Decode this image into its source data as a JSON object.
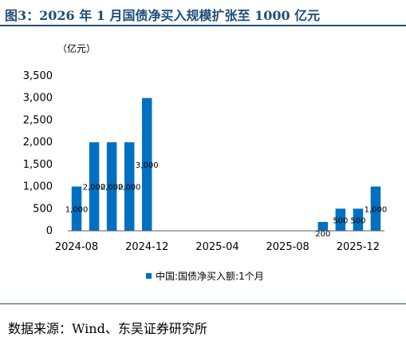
{
  "page": {
    "title": "图3：2026 年 1 月国债净买入规模扩张至 1000 亿元",
    "source": "数据来源：Wind、东吴证券研究所"
  },
  "chart_data": {
    "type": "bar",
    "unit_label": "（亿元）",
    "categories": [
      "2024-08",
      "2024-09",
      "2024-10",
      "2024-11",
      "2024-12",
      "2025-01",
      "2025-02",
      "2025-03",
      "2025-04",
      "2025-05",
      "2025-06",
      "2025-07",
      "2025-08",
      "2025-09",
      "2025-10",
      "2025-11",
      "2025-12",
      "2026-01"
    ],
    "x_tick_labels": [
      "2024-08",
      "2024-12",
      "2025-04",
      "2025-08",
      "2025-12"
    ],
    "ylim": [
      0,
      3500
    ],
    "y_ticks": [
      0,
      500,
      1000,
      1500,
      2000,
      2500,
      3000,
      3500
    ],
    "y_tick_labels": [
      "0",
      "500",
      "1,000",
      "1,500",
      "2,000",
      "2,500",
      "3,000",
      "3,500"
    ],
    "series": [
      {
        "name": "中国:国债净买入额:1个月",
        "values": [
          1000,
          2000,
          2000,
          2000,
          3000,
          0,
          0,
          0,
          0,
          0,
          0,
          0,
          0,
          0,
          200,
          500,
          500,
          1000
        ],
        "data_labels": [
          "1,000",
          "2,000",
          "2,000",
          "2,000",
          "3,000",
          "",
          "",
          "",
          "",
          "",
          "",
          "",
          "",
          "",
          "200",
          "500",
          "500",
          "1,000"
        ]
      }
    ],
    "legend_position": "bottom",
    "grid": false,
    "colors": {
      "bar": "#0070c0",
      "axis": "#595959"
    }
  }
}
